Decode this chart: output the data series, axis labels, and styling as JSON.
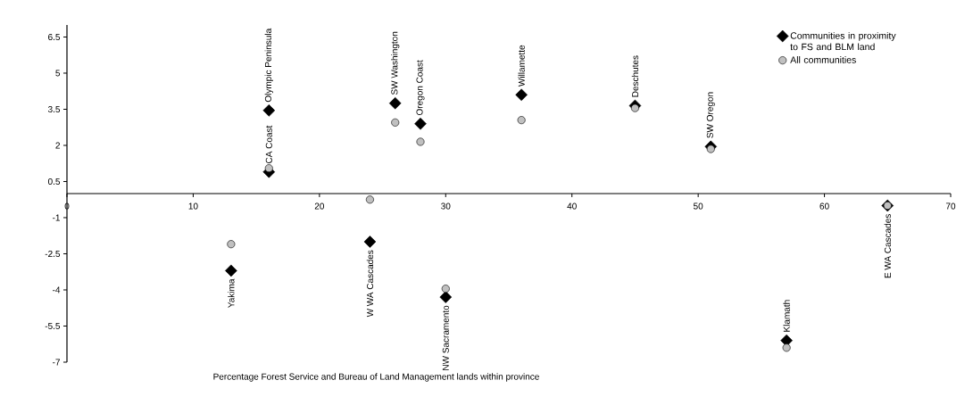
{
  "chart_data": {
    "type": "scatter",
    "xlabel": "Percentage Forest Service and Bureau of Land Management lands within province",
    "xlim": [
      0,
      70
    ],
    "xticks": [
      0,
      10,
      20,
      30,
      40,
      50,
      60,
      70
    ],
    "ylim": [
      -7,
      7
    ],
    "yticks": [
      -7,
      -5.5,
      -4,
      -2.5,
      -1,
      0.5,
      2,
      3.5,
      5,
      6.5
    ],
    "legend": "top right",
    "series": [
      {
        "name": "Communities in proximity to FS and BLM land",
        "color": "#000000",
        "marker": "diamond",
        "x": [
          16,
          16,
          13,
          24,
          26,
          28,
          30,
          36,
          45,
          51,
          57,
          65
        ],
        "values": [
          3.45,
          0.9,
          -3.2,
          -2.0,
          3.75,
          2.9,
          -4.3,
          4.1,
          3.65,
          1.95,
          -6.1,
          -0.5
        ]
      },
      {
        "name": "All communities",
        "color": "#c0c0c0",
        "marker": "circle",
        "x": [
          16,
          13,
          24,
          26,
          28,
          30,
          36,
          45,
          51,
          57,
          65
        ],
        "values": [
          1.05,
          -2.1,
          -0.25,
          2.95,
          2.15,
          -3.95,
          3.05,
          3.55,
          1.85,
          -6.4,
          -0.5
        ]
      }
    ],
    "annotations": [
      {
        "text": "Olympic Peninsula",
        "x": 16,
        "y": 3.45
      },
      {
        "text": "CA Coast",
        "x": 16,
        "y": 0.9
      },
      {
        "text": "Yakima",
        "x": 13,
        "y": -3.2
      },
      {
        "text": "W WA Cascades",
        "x": 24,
        "y": -2.0
      },
      {
        "text": "SW Washington",
        "x": 26,
        "y": 3.75
      },
      {
        "text": "Oregon Coast",
        "x": 28,
        "y": 2.9
      },
      {
        "text": "NW Sacramento",
        "x": 30,
        "y": -4.3
      },
      {
        "text": "Willamette",
        "x": 36,
        "y": 4.1
      },
      {
        "text": "Deschutes",
        "x": 45,
        "y": 3.65
      },
      {
        "text": "SW Oregon",
        "x": 51,
        "y": 1.95
      },
      {
        "text": "Klamath",
        "x": 57,
        "y": -6.1
      },
      {
        "text": "E WA Cascades",
        "x": 65,
        "y": -0.5
      }
    ]
  }
}
